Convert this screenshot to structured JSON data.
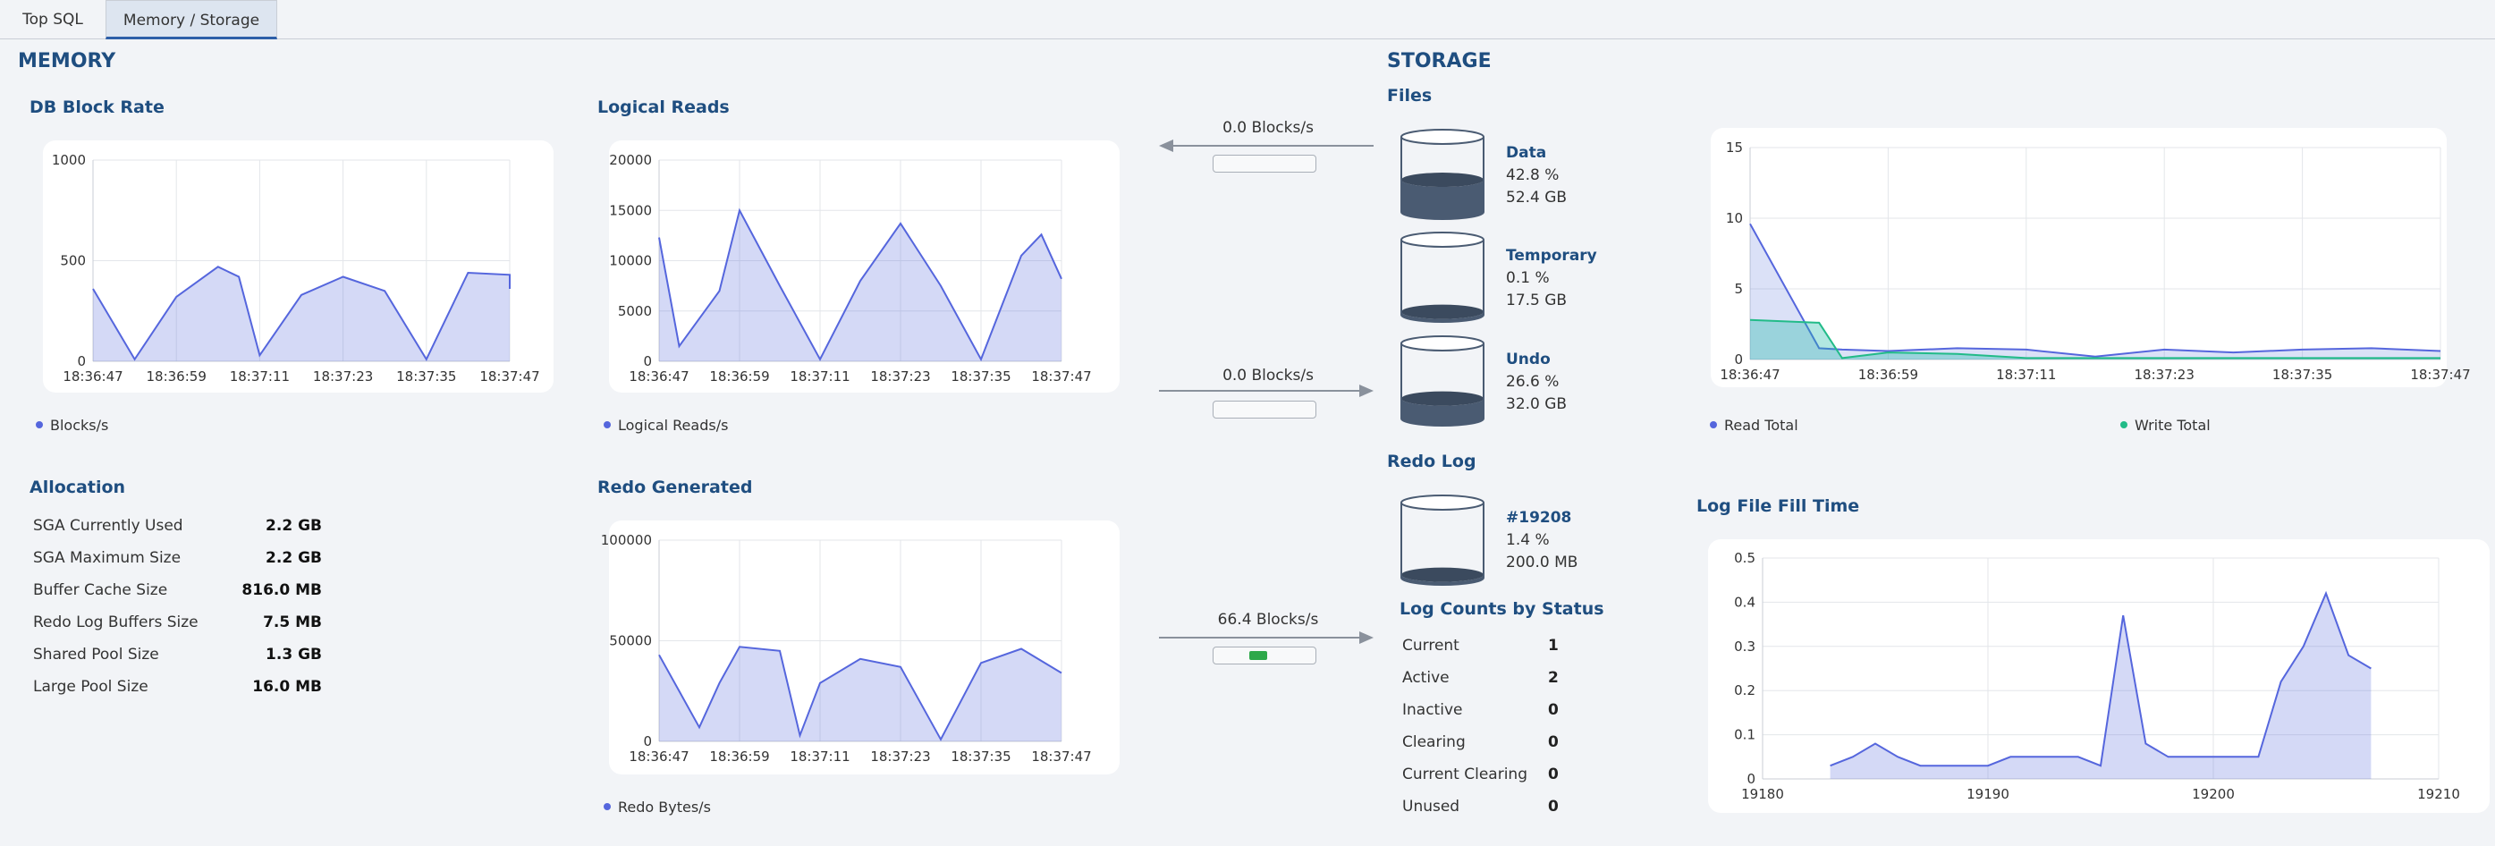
{
  "tabs": [
    {
      "label": "Top SQL"
    },
    {
      "label": "Memory / Storage"
    }
  ],
  "memory": {
    "title": "MEMORY",
    "db_block_rate": {
      "title": "DB Block Rate",
      "legend": "Blocks/s"
    },
    "logical_reads": {
      "title": "Logical Reads",
      "legend": "Logical Reads/s"
    },
    "redo_generated": {
      "title": "Redo Generated",
      "legend": "Redo Bytes/s"
    },
    "allocation": {
      "title": "Allocation",
      "rows": [
        {
          "label": "SGA Currently Used",
          "value": "2.2 GB"
        },
        {
          "label": "SGA Maximum Size",
          "value": "2.2 GB"
        },
        {
          "label": "Buffer Cache Size",
          "value": "816.0 MB"
        },
        {
          "label": "Redo Log Buffers Size",
          "value": "7.5 MB"
        },
        {
          "label": "Shared Pool Size",
          "value": "1.3 GB"
        },
        {
          "label": "Large Pool Size",
          "value": "16.0 MB"
        }
      ]
    }
  },
  "storage": {
    "title": "STORAGE",
    "files_title": "Files",
    "flows": [
      {
        "label": "0.0 Blocks/s",
        "direction": "left",
        "fill": 0
      },
      {
        "label": "0.0 Blocks/s",
        "direction": "right",
        "fill": 0
      },
      {
        "label": "66.4 Blocks/s",
        "direction": "right",
        "fill": 0.1
      }
    ],
    "files": [
      {
        "name": "Data",
        "percent": "42.8 %",
        "size": "52.4 GB",
        "fill": 0.428
      },
      {
        "name": "Temporary",
        "percent": "0.1 %",
        "size": "17.5 GB",
        "fill": 0.001
      },
      {
        "name": "Undo",
        "percent": "26.6 %",
        "size": "32.0 GB",
        "fill": 0.266
      }
    ],
    "redo_log": {
      "title": "Redo Log",
      "name": "#19208",
      "percent": "1.4 %",
      "size": "200.0 MB",
      "fill": 0.014
    },
    "log_counts": {
      "title": "Log Counts by Status",
      "rows": [
        {
          "label": "Current",
          "value": "1"
        },
        {
          "label": "Active",
          "value": "2"
        },
        {
          "label": "Inactive",
          "value": "0"
        },
        {
          "label": "Clearing",
          "value": "0"
        },
        {
          "label": "Current Clearing",
          "value": "0"
        },
        {
          "label": "Unused",
          "value": "0"
        }
      ]
    },
    "io_legend": {
      "read": "Read Total",
      "write": "Write Total"
    },
    "log_fill_title": "Log File Fill Time"
  },
  "colors": {
    "accent": "#1f4e80",
    "series_blue": "#5566dd",
    "series_fill": "#d5dcf8",
    "series_green": "#22bb88",
    "tab_underline": "#2d5fa8"
  },
  "chart_data": [
    {
      "type": "area",
      "x": [
        "18:36:47",
        "18:36:53",
        "18:36:59",
        "18:37:05",
        "18:37:08",
        "18:37:11",
        "18:37:17",
        "18:37:23",
        "18:37:29",
        "18:37:35",
        "18:37:41",
        "18:37:47",
        "18:37:47"
      ],
      "x_ticks": [
        "18:36:47",
        "18:36:59",
        "18:37:11",
        "18:37:23",
        "18:37:35",
        "18:37:47"
      ],
      "series": [
        {
          "name": "Blocks/s",
          "values": [
            360,
            10,
            320,
            470,
            420,
            30,
            330,
            420,
            350,
            10,
            440,
            430,
            360
          ]
        }
      ],
      "ylim": [
        0,
        1000
      ],
      "y_ticks": [
        0,
        500,
        1000
      ]
    },
    {
      "type": "area",
      "x": [
        "18:36:47",
        "18:36:50",
        "18:36:56",
        "18:36:59",
        "18:37:05",
        "18:37:11",
        "18:37:17",
        "18:37:23",
        "18:37:29",
        "18:37:35",
        "18:37:41",
        "18:37:44",
        "18:37:47"
      ],
      "x_ticks": [
        "18:36:47",
        "18:36:59",
        "18:37:11",
        "18:37:23",
        "18:37:35",
        "18:37:47"
      ],
      "series": [
        {
          "name": "Logical Reads/s",
          "values": [
            12300,
            1500,
            7000,
            15000,
            7500,
            200,
            8000,
            13700,
            7500,
            200,
            10500,
            12600,
            8200
          ]
        }
      ],
      "ylim": [
        0,
        20000
      ],
      "y_ticks": [
        0,
        5000,
        10000,
        15000,
        20000
      ]
    },
    {
      "type": "area",
      "x": [
        "18:36:47",
        "18:36:53",
        "18:36:56",
        "18:36:59",
        "18:37:05",
        "18:37:08",
        "18:37:11",
        "18:37:17",
        "18:37:23",
        "18:37:29",
        "18:37:35",
        "18:37:41",
        "18:37:47"
      ],
      "x_ticks": [
        "18:36:47",
        "18:36:59",
        "18:37:11",
        "18:37:23",
        "18:37:35",
        "18:37:47"
      ],
      "series": [
        {
          "name": "Redo Bytes/s",
          "values": [
            43000,
            7000,
            29000,
            47000,
            45000,
            3000,
            29000,
            41000,
            37000,
            1000,
            39000,
            46000,
            34000
          ]
        }
      ],
      "ylim": [
        0,
        100000
      ],
      "y_ticks": [
        0,
        50000,
        100000
      ]
    },
    {
      "type": "area",
      "x": [
        "18:36:47",
        "18:36:53",
        "18:36:55",
        "18:36:59",
        "18:37:05",
        "18:37:11",
        "18:37:17",
        "18:37:23",
        "18:37:29",
        "18:37:35",
        "18:37:41",
        "18:37:47"
      ],
      "x_ticks": [
        "18:36:47",
        "18:36:59",
        "18:37:11",
        "18:37:23",
        "18:37:35",
        "18:37:47"
      ],
      "series": [
        {
          "name": "Read Total",
          "values": [
            9.6,
            0.8,
            0.7,
            0.6,
            0.8,
            0.7,
            0.2,
            0.7,
            0.5,
            0.7,
            0.8,
            0.6
          ]
        },
        {
          "name": "Write Total",
          "values": [
            2.8,
            2.6,
            0.1,
            0.5,
            0.4,
            0.1,
            0.1,
            0.1,
            0.1,
            0.1,
            0.1,
            0.1
          ]
        }
      ],
      "ylim": [
        0,
        15
      ],
      "y_ticks": [
        0,
        5,
        10,
        15
      ]
    },
    {
      "type": "area",
      "x": [
        19183,
        19184,
        19185,
        19186,
        19187,
        19188,
        19189,
        19190,
        19191,
        19192,
        19193,
        19194,
        19195,
        19196,
        19197,
        19198,
        19199,
        19200,
        19201,
        19202,
        19203,
        19204,
        19205,
        19206,
        19207
      ],
      "x_ticks": [
        19180,
        19190,
        19200,
        19210
      ],
      "series": [
        {
          "name": "Log File Fill Time",
          "values": [
            0.03,
            0.05,
            0.08,
            0.05,
            0.03,
            0.03,
            0.03,
            0.03,
            0.05,
            0.05,
            0.05,
            0.05,
            0.03,
            0.37,
            0.08,
            0.05,
            0.05,
            0.05,
            0.05,
            0.05,
            0.22,
            0.3,
            0.42,
            0.28,
            0.25
          ]
        }
      ],
      "xlim": [
        19180,
        19210
      ],
      "ylim": [
        0,
        0.5
      ],
      "y_ticks": [
        0,
        0.1,
        0.2,
        0.3,
        0.4,
        0.5
      ]
    }
  ]
}
